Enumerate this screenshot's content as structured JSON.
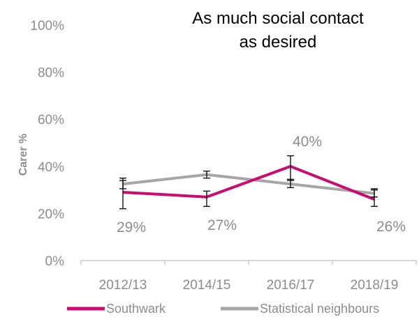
{
  "chart_data": {
    "type": "line",
    "title_lines": [
      "As much social contact",
      "as desired"
    ],
    "ylabel": "Carer %",
    "xlabel": "",
    "categories": [
      "2012/13",
      "2014/15",
      "2016/17",
      "2018/19"
    ],
    "ylim": [
      0,
      100
    ],
    "yticks": [
      0,
      20,
      40,
      60,
      80,
      100
    ],
    "ytick_labels": [
      "0%",
      "20%",
      "40%",
      "60%",
      "80%",
      "100%"
    ],
    "grid": false,
    "legend_position": "bottom",
    "series": [
      {
        "name": "Southwark",
        "color": "#cc0a72",
        "values": [
          29,
          27,
          40,
          26
        ],
        "error_low": [
          22,
          23,
          34,
          23
        ],
        "error_high": [
          34,
          29.5,
          44.5,
          30
        ],
        "data_labels": [
          "29%",
          "27%",
          "40%",
          "26%"
        ]
      },
      {
        "name": "Statistical neighbours",
        "color": "#a6a6a6",
        "values": [
          32.5,
          36.5,
          32.5,
          28.5
        ],
        "error_low": [
          30.5,
          35,
          31,
          27
        ],
        "error_high": [
          35,
          38,
          34.5,
          30.5
        ]
      }
    ]
  }
}
